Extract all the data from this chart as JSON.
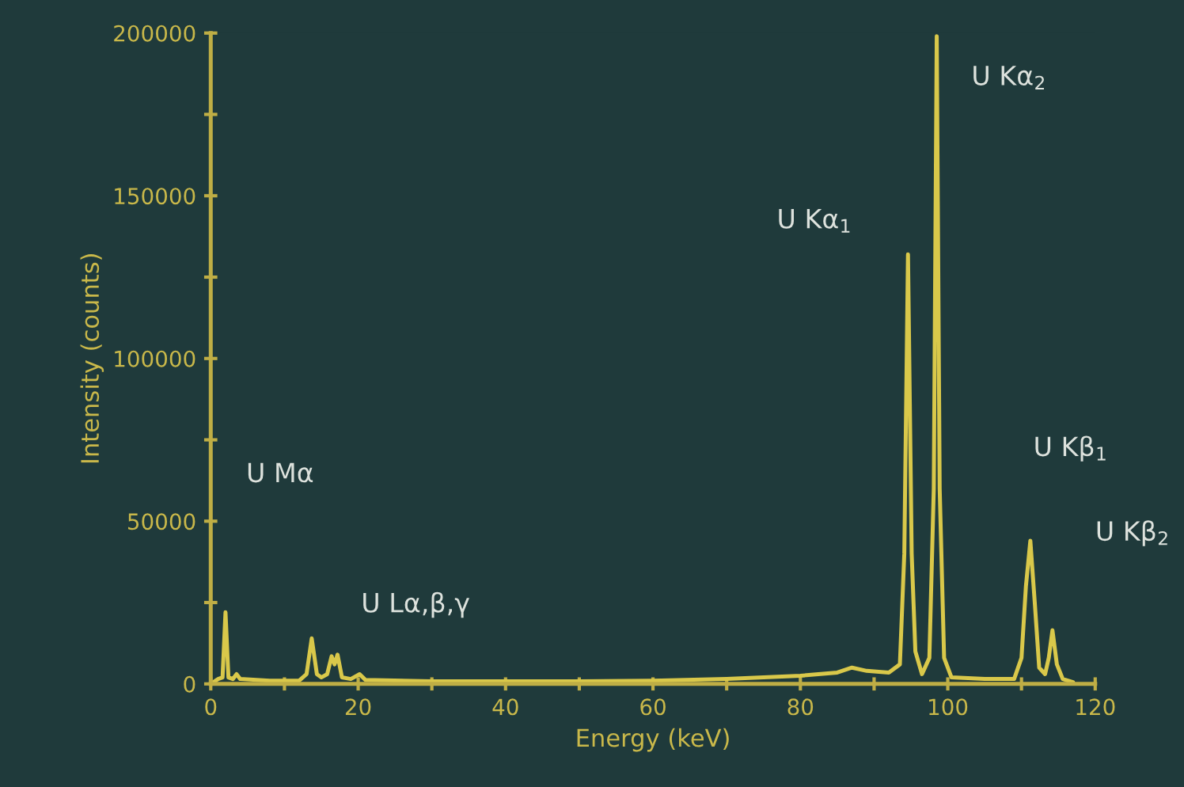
{
  "chart_data": {
    "type": "line",
    "xlabel": "Energy (keV)",
    "ylabel": "Intensity (counts)",
    "series": [
      {
        "color": "#d9c84a",
        "x": [
          0,
          1,
          1.6,
          2.0,
          2.4,
          3,
          3.5,
          4,
          8,
          12,
          13,
          13.7,
          14.4,
          15,
          15.8,
          16.4,
          16.8,
          17.2,
          17.8,
          19,
          20.2,
          21,
          30,
          40,
          50,
          60,
          70,
          80,
          85,
          87,
          89,
          92,
          93.5,
          94.1,
          94.6,
          95.1,
          95.6,
          96.5,
          97.5,
          98.1,
          98.5,
          98.9,
          99.5,
          100.5,
          105,
          109,
          110,
          110.6,
          111.2,
          111.8,
          112.4,
          113.2,
          113.7,
          114.2,
          114.8,
          115.6,
          117
        ],
        "values": [
          0,
          1500,
          2000,
          22000,
          2000,
          1500,
          3000,
          1500,
          1000,
          1000,
          3000,
          14000,
          3000,
          2000,
          3000,
          8500,
          6000,
          9000,
          2000,
          1500,
          3000,
          1200,
          800,
          800,
          800,
          1000,
          1500,
          2500,
          3500,
          5000,
          4000,
          3500,
          6000,
          40000,
          132000,
          40000,
          10000,
          3000,
          8000,
          60000,
          199000,
          60000,
          8000,
          2000,
          1500,
          1500,
          8000,
          30000,
          44000,
          25000,
          5000,
          3000,
          8000,
          16500,
          6000,
          1500,
          500
        ]
      }
    ],
    "xlim": [
      0,
      120
    ],
    "xticks": [
      0,
      {
        "value": 10,
        "label": null
      },
      20,
      {
        "value": 30,
        "label": null
      },
      40,
      {
        "value": 50,
        "label": null
      },
      60,
      {
        "value": 70,
        "label": null
      },
      80,
      {
        "value": 90,
        "label": null
      },
      100,
      {
        "value": 110,
        "label": null
      },
      120
    ],
    "ylim": [
      0,
      200000
    ],
    "yticks": [
      0,
      {
        "value": 25000,
        "label": null
      },
      50000,
      {
        "value": 75000,
        "label": null
      },
      100000,
      {
        "value": 125000,
        "label": null
      },
      150000,
      {
        "value": 175000,
        "label": null
      },
      200000
    ],
    "grid": false,
    "legend": false,
    "annotations": [
      "U Mα",
      "U Lα,β,γ",
      "U Kα$_{1}$",
      "U Kα$_{2}$",
      "U Kβ$_{1}$",
      "U Kβ$_{2}$"
    ]
  }
}
